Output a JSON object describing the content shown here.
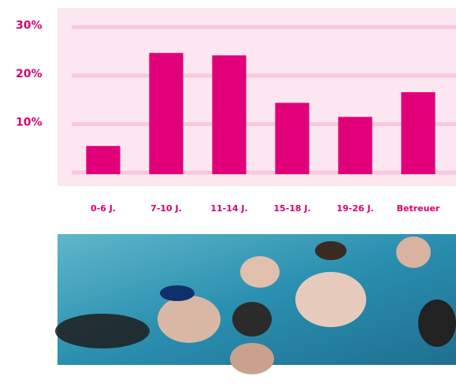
{
  "chart_data": {
    "type": "bar",
    "categories": [
      "0-6 J.",
      "7-10 J.",
      "11-14 J.",
      "15-18 J.",
      "19-26 J.",
      "Betreuer"
    ],
    "values": [
      5.5,
      24.7,
      24.2,
      14.4,
      11.5,
      16.6
    ],
    "color": "#e2007a",
    "ylim": [
      0,
      34
    ],
    "yticks": [
      {
        "value": 10,
        "label": "10%"
      },
      {
        "value": 20,
        "label": "20%"
      },
      {
        "value": 30,
        "label": "30%"
      }
    ],
    "grid": true
  }
}
